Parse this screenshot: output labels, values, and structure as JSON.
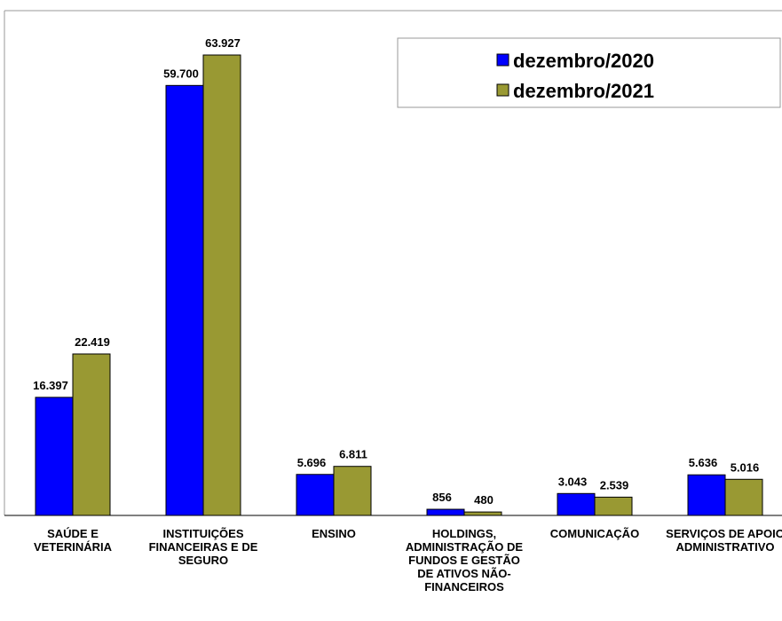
{
  "chart_data": {
    "type": "bar",
    "categories": [
      "SAÚDE E VETERINÁRIA",
      "INSTITUIÇÕES FINANCEIRAS E DE SEGURO",
      "ENSINO",
      "HOLDINGS, ADMINISTRAÇÃO DE FUNDOS  E GESTÃO DE ATIVOS NÃO-FINANCEIROS",
      "COMUNICAÇÃO",
      "SERVIÇOS DE APOIO ADMINISTRATIVO"
    ],
    "series": [
      {
        "name": "dezembro/2020",
        "color": "#0000ff",
        "values": [
          16397,
          59700,
          5696,
          856,
          3043,
          5636
        ],
        "value_labels": [
          "16.397",
          "59.700",
          "5.696",
          "856",
          "3.043",
          "5.636"
        ]
      },
      {
        "name": "dezembro/2021",
        "color": "#999933",
        "values": [
          22419,
          63927,
          6811,
          480,
          2539,
          5016
        ],
        "value_labels": [
          "22.419",
          "63.927",
          "6.811",
          "480",
          "2.539",
          "5.016"
        ]
      }
    ],
    "legend": "top-right"
  }
}
